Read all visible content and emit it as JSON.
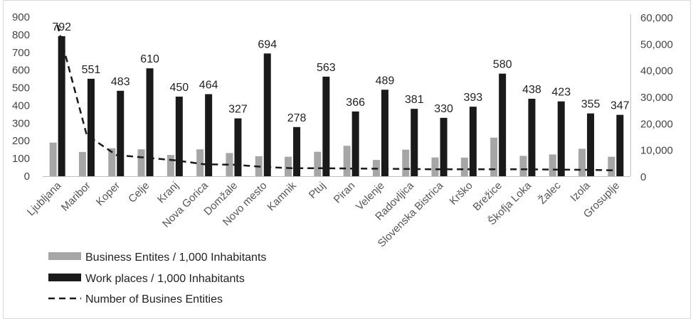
{
  "chart_data": {
    "type": "bar",
    "categories": [
      "Ljubljana",
      "Maribor",
      "Koper",
      "Celje",
      "Kranj",
      "Nova Gorica",
      "Domžale",
      "Novo mesto",
      "Kamnik",
      "Ptuj",
      "Piran",
      "Velenje",
      "Radovljica",
      "Slovenska Bistrica",
      "Krško",
      "Brežice",
      "Škofja Loka",
      "Žalec",
      "Izola",
      "Grosuplje"
    ],
    "series": [
      {
        "name": "Business Entites / 1,000 Inhabitants",
        "type": "bar",
        "axis": "left",
        "color": "#a6a6a6",
        "values": [
          190,
          137,
          158,
          152,
          120,
          152,
          131,
          113,
          110,
          138,
          172,
          92,
          150,
          106,
          105,
          218,
          115,
          123,
          155,
          110
        ]
      },
      {
        "name": "Work places / 1,000 Inhabitants",
        "type": "bar",
        "axis": "left",
        "color": "#1a1a1a",
        "values": [
          792,
          551,
          483,
          610,
          450,
          464,
          327,
          694,
          278,
          563,
          366,
          489,
          381,
          330,
          393,
          580,
          438,
          423,
          355,
          347
        ],
        "data_labels": [
          "792",
          "551",
          "483",
          "610",
          "450",
          "464",
          "327",
          "694",
          "278",
          "563",
          "366",
          "489",
          "381",
          "330",
          "393",
          "580",
          "438",
          "423",
          "355",
          "347"
        ]
      },
      {
        "name": "Number of Busines Entities",
        "type": "line",
        "style": "dashed",
        "axis": "right",
        "color": "#1a1a1a",
        "values": [
          57000,
          15500,
          8000,
          7000,
          6000,
          4500,
          4300,
          3500,
          3000,
          3000,
          2900,
          2800,
          2700,
          2600,
          2600,
          2600,
          2600,
          2500,
          2400,
          2200
        ]
      }
    ],
    "yaxis_left": {
      "min": 0,
      "max": 900,
      "step": 100,
      "ticks": [
        "0",
        "100",
        "200",
        "300",
        "400",
        "500",
        "600",
        "700",
        "800",
        "900"
      ]
    },
    "yaxis_right": {
      "min": 0,
      "max": 60000,
      "step": 10000,
      "ticks": [
        "0",
        "10,000",
        "20,000",
        "30,000",
        "40,000",
        "50,000",
        "60,000"
      ]
    },
    "grid": false,
    "legend_position": "bottom-left",
    "title": "",
    "xlabel": "",
    "ylabel": ""
  }
}
